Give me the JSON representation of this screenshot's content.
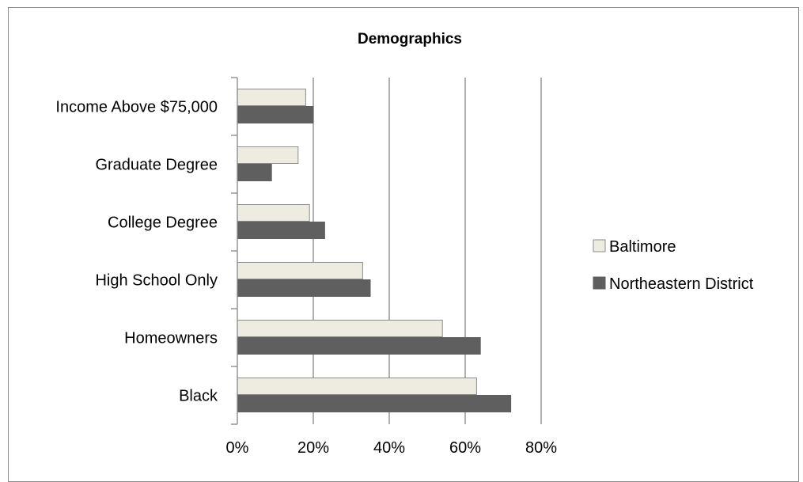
{
  "chart_data": {
    "type": "bar",
    "orientation": "horizontal",
    "title": "Demographics",
    "categories": [
      "Income Above $75,000",
      "Graduate Degree",
      "College Degree",
      "High School Only",
      "Homeowners",
      "Black"
    ],
    "series": [
      {
        "name": "Baltimore",
        "values": [
          18,
          16,
          19,
          33,
          54,
          63
        ],
        "color": "#eeece1"
      },
      {
        "name": "Northeastern District",
        "values": [
          20,
          9,
          23,
          35,
          64,
          72
        ],
        "color": "#5f5f5f"
      }
    ],
    "xlim": [
      0,
      80
    ],
    "xticks": [
      "0%",
      "20%",
      "40%",
      "60%",
      "80%"
    ],
    "grid": "vertical",
    "legend_position": "right"
  }
}
